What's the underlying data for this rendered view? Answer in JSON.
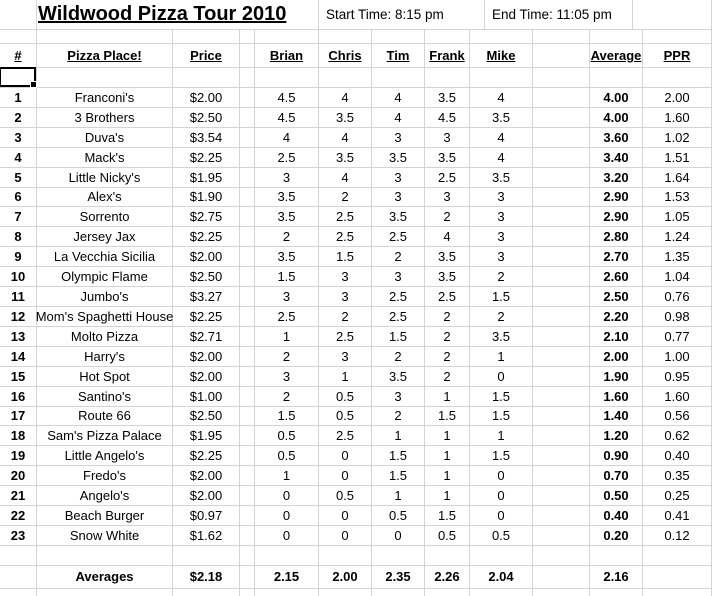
{
  "sheet": {
    "title": "Wildwood Pizza Tour 2010",
    "start_time": "Start Time: 8:15 pm",
    "end_time": "End Time: 11:05 pm",
    "headers": {
      "num": "#",
      "place": "Pizza Place!",
      "price": "Price",
      "brian": "Brian",
      "chris": "Chris",
      "tim": "Tim",
      "frank": "Frank",
      "mike": "Mike",
      "average": "Average",
      "ppr": "PPR"
    },
    "rows": [
      {
        "num": "1",
        "place": "Franconi's",
        "price": "$2.00",
        "brian": "4.5",
        "chris": "4",
        "tim": "4",
        "frank": "3.5",
        "mike": "4",
        "average": "4.00",
        "ppr": "2.00"
      },
      {
        "num": "2",
        "place": "3 Brothers",
        "price": "$2.50",
        "brian": "4.5",
        "chris": "3.5",
        "tim": "4",
        "frank": "4.5",
        "mike": "3.5",
        "average": "4.00",
        "ppr": "1.60"
      },
      {
        "num": "3",
        "place": "Duva's",
        "price": "$3.54",
        "brian": "4",
        "chris": "4",
        "tim": "3",
        "frank": "3",
        "mike": "4",
        "average": "3.60",
        "ppr": "1.02"
      },
      {
        "num": "4",
        "place": "Mack's",
        "price": "$2.25",
        "brian": "2.5",
        "chris": "3.5",
        "tim": "3.5",
        "frank": "3.5",
        "mike": "4",
        "average": "3.40",
        "ppr": "1.51"
      },
      {
        "num": "5",
        "place": "Little Nicky's",
        "price": "$1.95",
        "brian": "3",
        "chris": "4",
        "tim": "3",
        "frank": "2.5",
        "mike": "3.5",
        "average": "3.20",
        "ppr": "1.64"
      },
      {
        "num": "6",
        "place": "Alex's",
        "price": "$1.90",
        "brian": "3.5",
        "chris": "2",
        "tim": "3",
        "frank": "3",
        "mike": "3",
        "average": "2.90",
        "ppr": "1.53"
      },
      {
        "num": "7",
        "place": "Sorrento",
        "price": "$2.75",
        "brian": "3.5",
        "chris": "2.5",
        "tim": "3.5",
        "frank": "2",
        "mike": "3",
        "average": "2.90",
        "ppr": "1.05"
      },
      {
        "num": "8",
        "place": "Jersey Jax",
        "price": "$2.25",
        "brian": "2",
        "chris": "2.5",
        "tim": "2.5",
        "frank": "4",
        "mike": "3",
        "average": "2.80",
        "ppr": "1.24"
      },
      {
        "num": "9",
        "place": "La Vecchia Sicilia",
        "price": "$2.00",
        "brian": "3.5",
        "chris": "1.5",
        "tim": "2",
        "frank": "3.5",
        "mike": "3",
        "average": "2.70",
        "ppr": "1.35"
      },
      {
        "num": "10",
        "place": "Olympic Flame",
        "price": "$2.50",
        "brian": "1.5",
        "chris": "3",
        "tim": "3",
        "frank": "3.5",
        "mike": "2",
        "average": "2.60",
        "ppr": "1.04"
      },
      {
        "num": "11",
        "place": "Jumbo's",
        "price": "$3.27",
        "brian": "3",
        "chris": "3",
        "tim": "2.5",
        "frank": "2.5",
        "mike": "1.5",
        "average": "2.50",
        "ppr": "0.76"
      },
      {
        "num": "12",
        "place": "Mom's Spaghetti House",
        "price": "$2.25",
        "brian": "2.5",
        "chris": "2",
        "tim": "2.5",
        "frank": "2",
        "mike": "2",
        "average": "2.20",
        "ppr": "0.98"
      },
      {
        "num": "13",
        "place": "Molto Pizza",
        "price": "$2.71",
        "brian": "1",
        "chris": "2.5",
        "tim": "1.5",
        "frank": "2",
        "mike": "3.5",
        "average": "2.10",
        "ppr": "0.77"
      },
      {
        "num": "14",
        "place": "Harry's",
        "price": "$2.00",
        "brian": "2",
        "chris": "3",
        "tim": "2",
        "frank": "2",
        "mike": "1",
        "average": "2.00",
        "ppr": "1.00"
      },
      {
        "num": "15",
        "place": "Hot Spot",
        "price": "$2.00",
        "brian": "3",
        "chris": "1",
        "tim": "3.5",
        "frank": "2",
        "mike": "0",
        "average": "1.90",
        "ppr": "0.95"
      },
      {
        "num": "16",
        "place": "Santino's",
        "price": "$1.00",
        "brian": "2",
        "chris": "0.5",
        "tim": "3",
        "frank": "1",
        "mike": "1.5",
        "average": "1.60",
        "ppr": "1.60"
      },
      {
        "num": "17",
        "place": "Route 66",
        "price": "$2.50",
        "brian": "1.5",
        "chris": "0.5",
        "tim": "2",
        "frank": "1.5",
        "mike": "1.5",
        "average": "1.40",
        "ppr": "0.56"
      },
      {
        "num": "18",
        "place": "Sam's Pizza Palace",
        "price": "$1.95",
        "brian": "0.5",
        "chris": "2.5",
        "tim": "1",
        "frank": "1",
        "mike": "1",
        "average": "1.20",
        "ppr": "0.62"
      },
      {
        "num": "19",
        "place": "Little Angelo's",
        "price": "$2.25",
        "brian": "0.5",
        "chris": "0",
        "tim": "1.5",
        "frank": "1",
        "mike": "1.5",
        "average": "0.90",
        "ppr": "0.40"
      },
      {
        "num": "20",
        "place": "Fredo's",
        "price": "$2.00",
        "brian": "1",
        "chris": "0",
        "tim": "1.5",
        "frank": "1",
        "mike": "0",
        "average": "0.70",
        "ppr": "0.35"
      },
      {
        "num": "21",
        "place": "Angelo's",
        "price": "$2.00",
        "brian": "0",
        "chris": "0.5",
        "tim": "1",
        "frank": "1",
        "mike": "0",
        "average": "0.50",
        "ppr": "0.25"
      },
      {
        "num": "22",
        "place": "Beach Burger",
        "price": "$0.97",
        "brian": "0",
        "chris": "0",
        "tim": "0.5",
        "frank": "1.5",
        "mike": "0",
        "average": "0.40",
        "ppr": "0.41"
      },
      {
        "num": "23",
        "place": "Snow White",
        "price": "$1.62",
        "brian": "0",
        "chris": "0",
        "tim": "0",
        "frank": "0.5",
        "mike": "0.5",
        "average": "0.20",
        "ppr": "0.12"
      }
    ],
    "summary": {
      "label": "Averages",
      "price": "$2.18",
      "brian": "2.15",
      "chris": "2.00",
      "tim": "2.35",
      "frank": "2.26",
      "mike": "2.04",
      "average": "2.16",
      "ppr": ""
    }
  },
  "colors": {
    "gridline": "#d4d4d4",
    "text": "#000000",
    "background": "#ffffff",
    "selection": "#000000"
  }
}
